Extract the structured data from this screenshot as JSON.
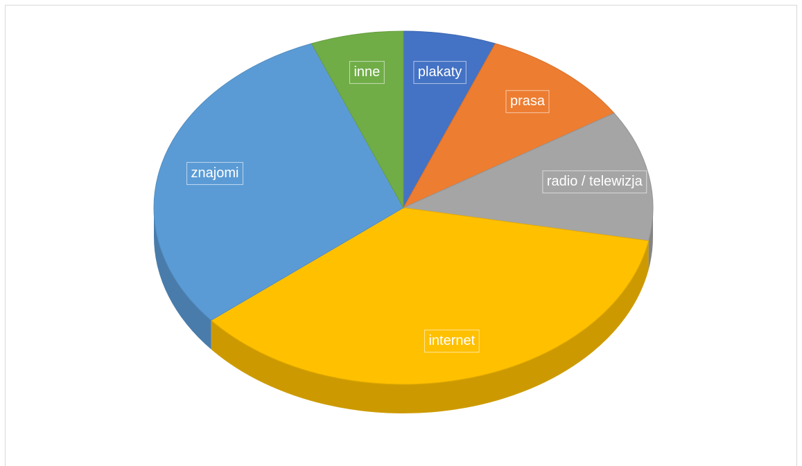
{
  "chart_data": {
    "type": "pie3d",
    "categories": [
      "plakaty",
      "prasa",
      "radio / telewizja",
      "internet",
      "znajomi",
      "inne"
    ],
    "values": [
      6,
      10,
      12,
      36,
      30,
      6
    ],
    "colors": [
      "#4472c4",
      "#ed7d31",
      "#a5a5a5",
      "#ffc000",
      "#5b9bd5",
      "#70ad47"
    ]
  }
}
